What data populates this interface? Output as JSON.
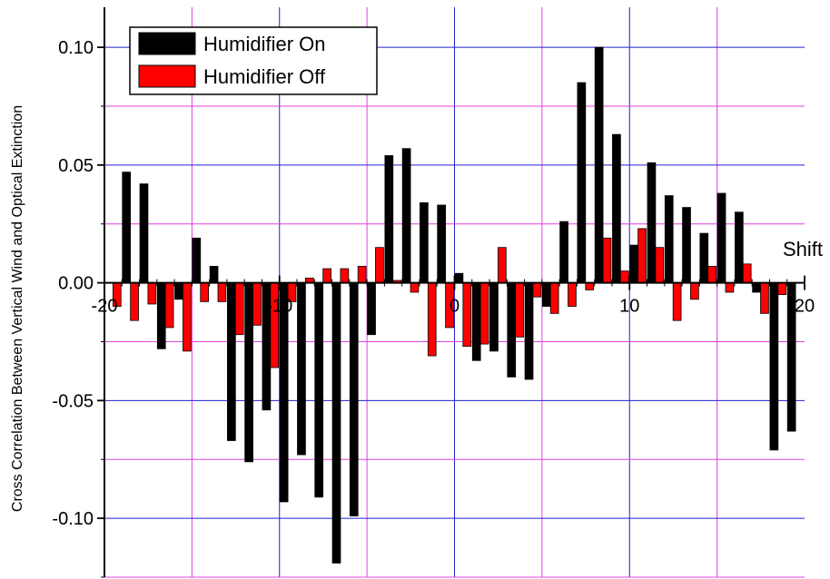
{
  "chart_data": {
    "type": "bar",
    "ylabel": "Cross Correlation Between Vertical Wind and Optical Extinction",
    "xlabel": "Shift",
    "xlim": [
      -20,
      20
    ],
    "ylim": [
      -0.125,
      0.117
    ],
    "x_ticks": [
      -20,
      -10,
      0,
      10,
      20
    ],
    "x_tick_labels": [
      "-20",
      "-10",
      "0",
      "10",
      "20"
    ],
    "y_ticks": [
      0.1,
      0.05,
      0.0,
      -0.05,
      -0.1
    ],
    "y_tick_labels": [
      "0.10",
      "0.05",
      "0.00",
      "-0.05",
      "-0.10"
    ],
    "grid": true,
    "grid_colors": {
      "major": "#2020d0",
      "minor": "#e040e0"
    },
    "legend_position": "top-left",
    "x": [
      -20,
      -19,
      -18,
      -17,
      -16,
      -15,
      -14,
      -13,
      -12,
      -11,
      -10,
      -9,
      -8,
      -7,
      -6,
      -5,
      -4,
      -3,
      -2,
      -1,
      0,
      1,
      2,
      3,
      4,
      5,
      6,
      7,
      8,
      9,
      10,
      11,
      12,
      13,
      14,
      15,
      16,
      17,
      18,
      19,
      20
    ],
    "series": [
      {
        "name": "Humidifier On",
        "color": "#000000",
        "values": [
          0,
          0.047,
          0.042,
          -0.028,
          -0.007,
          0.019,
          0.007,
          -0.067,
          -0.076,
          -0.054,
          -0.093,
          -0.073,
          -0.091,
          -0.119,
          -0.099,
          -0.022,
          0.054,
          0.057,
          0.034,
          0.033,
          0.004,
          -0.033,
          -0.029,
          -0.04,
          -0.041,
          -0.01,
          0.026,
          0.085,
          0.1,
          0.063,
          0.016,
          0.051,
          0.037,
          0.032,
          0.021,
          0.038,
          0.03,
          -0.004,
          -0.071,
          -0.063,
          0
        ]
      },
      {
        "name": "Humidifier Off",
        "color": "#ff0000",
        "values": [
          -0.01,
          -0.016,
          -0.009,
          -0.019,
          -0.029,
          -0.008,
          -0.008,
          -0.022,
          -0.018,
          -0.036,
          -0.008,
          0.002,
          0.006,
          0.006,
          0.007,
          0.015,
          0.001,
          -0.004,
          -0.031,
          -0.019,
          -0.027,
          -0.026,
          0.015,
          -0.023,
          -0.006,
          -0.013,
          -0.01,
          -0.003,
          0.019,
          0.005,
          0.023,
          0.015,
          -0.016,
          -0.007,
          0.007,
          -0.004,
          0.008,
          -0.013,
          -0.005,
          0,
          0
        ]
      }
    ]
  }
}
